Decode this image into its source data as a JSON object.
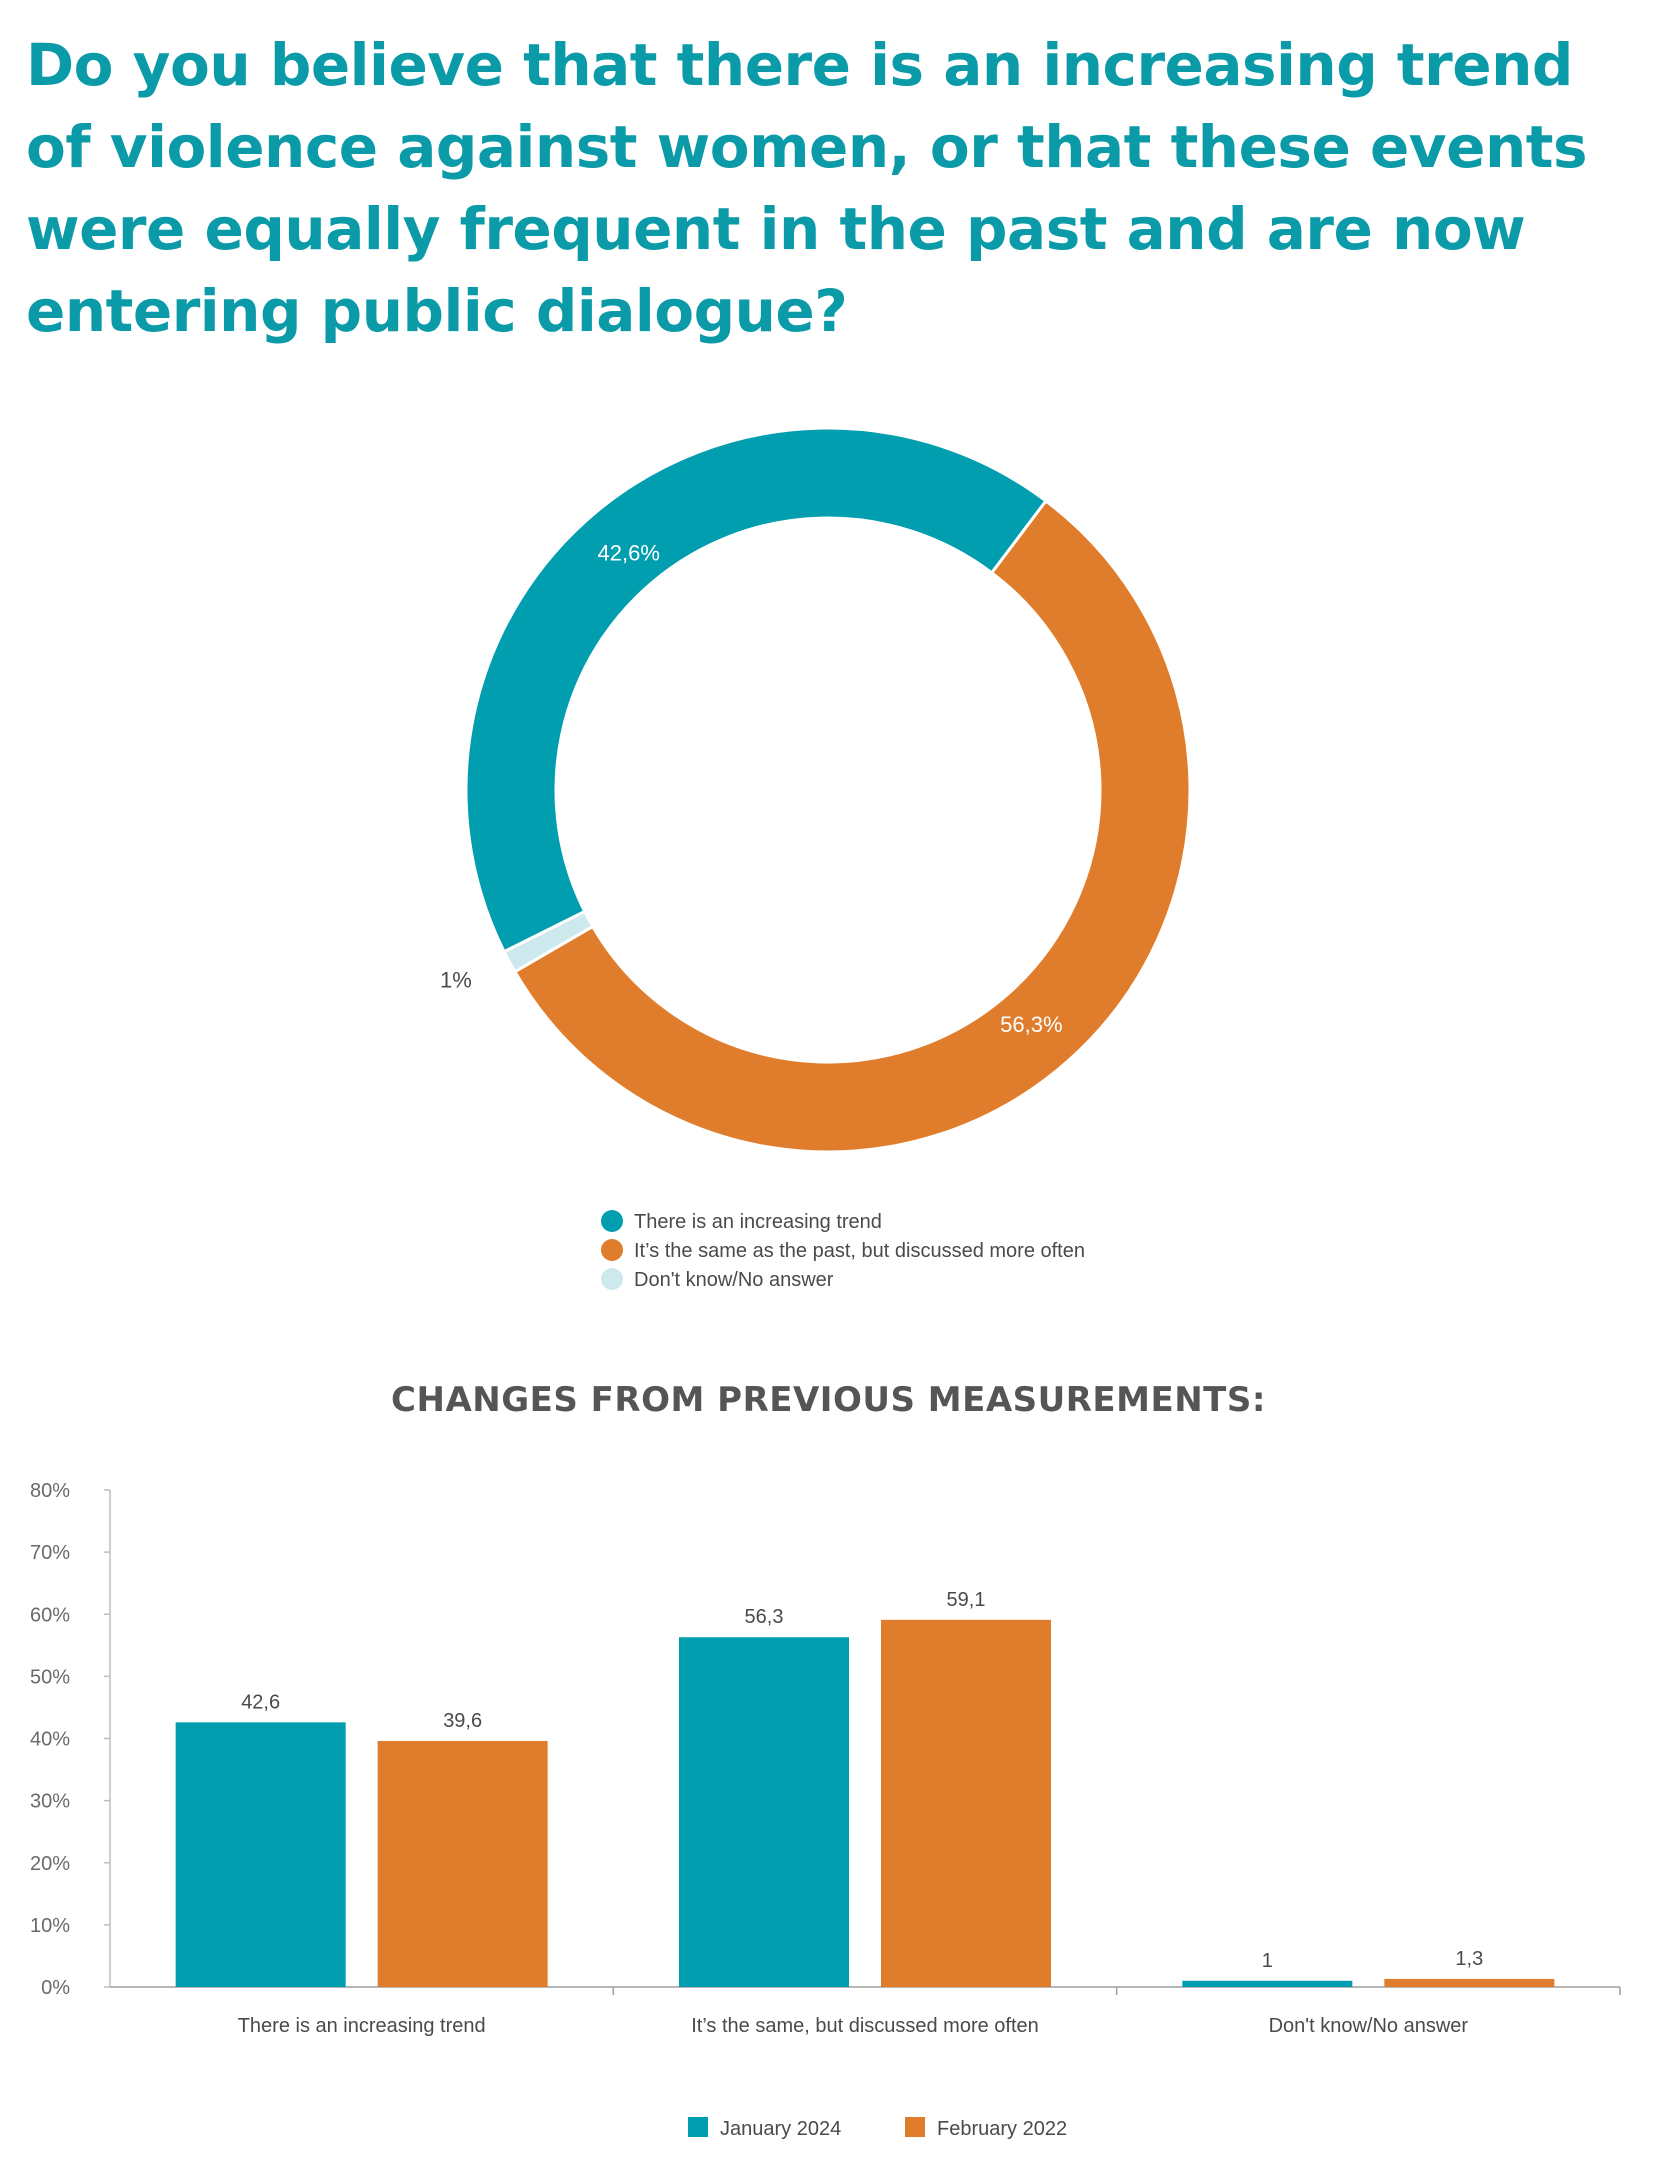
{
  "title": "Do you believe that there is an increasing trend of violence against women, or that these events were equally frequent in the past and are now entering public dialogue?",
  "colors": {
    "teal": "#009eae",
    "orange": "#e07d2c",
    "light": "#cde9ee"
  },
  "chart_data": [
    {
      "type": "pie",
      "title": "",
      "slices": [
        {
          "label": "There is an increasing trend",
          "value": 42.6,
          "display": "42,6%",
          "color": "#009eae"
        },
        {
          "label": "It’s the same as the past, but discussed more often",
          "value": 56.3,
          "display": "56,3%",
          "color": "#e07d2c"
        },
        {
          "label": "Don't know/No answer",
          "value": 1,
          "display": "1%",
          "color": "#cde9ee"
        }
      ],
      "legend_placement": "bottom"
    },
    {
      "type": "bar",
      "title": "CHANGES FROM PREVIOUS MEASUREMENTS:",
      "categories": [
        "There is an increasing trend",
        "It’s the same, but discussed more often",
        "Don't know/No answer"
      ],
      "series": [
        {
          "name": "January 2024",
          "values": [
            42.6,
            56.3,
            1
          ],
          "labels": [
            "42,6",
            "56,3",
            "1"
          ],
          "color": "#009eae"
        },
        {
          "name": "February 2022",
          "values": [
            39.6,
            59.1,
            1.3
          ],
          "labels": [
            "39,6",
            "59,1",
            "1,3"
          ],
          "color": "#e07d2c"
        }
      ],
      "ylim": [
        0,
        80
      ],
      "yticks": [
        "0%",
        "10%",
        "20%",
        "30%",
        "40%",
        "50%",
        "60%",
        "70%",
        "80%"
      ],
      "xlabel": "",
      "ylabel": "",
      "grid": false,
      "legend_placement": "bottom"
    }
  ]
}
